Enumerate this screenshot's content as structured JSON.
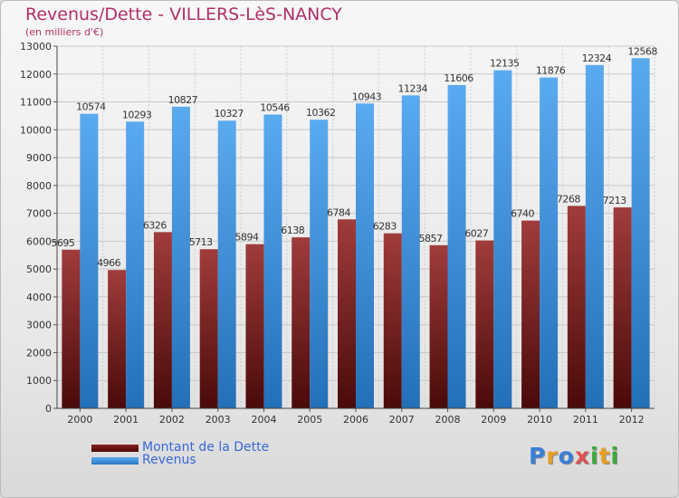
{
  "title": "Revenus/Dette - VILLERS-LèS-NANCY",
  "subtitle": "(en milliers d'€)",
  "logo": "Proxiti",
  "colors": {
    "dette": "#7a1616",
    "revenus": "#3d8fd8",
    "title": "#b0306a",
    "legend_text": "#3a68d8"
  },
  "chart_data": {
    "type": "bar",
    "title": "Revenus/Dette - VILLERS-LèS-NANCY",
    "subtitle": "(en milliers d'€)",
    "xlabel": "",
    "ylabel": "",
    "ylim": [
      0,
      13000
    ],
    "yticks": [
      0,
      1000,
      2000,
      3000,
      4000,
      5000,
      6000,
      7000,
      8000,
      9000,
      10000,
      11000,
      12000,
      13000
    ],
    "grid": true,
    "legend_position": "bottom-left",
    "categories": [
      "2000",
      "2001",
      "2002",
      "2003",
      "2004",
      "2005",
      "2006",
      "2007",
      "2008",
      "2009",
      "2010",
      "2011",
      "2012"
    ],
    "series": [
      {
        "name": "Montant de la Dette",
        "values": [
          5695,
          4966,
          6326,
          5713,
          5894,
          6138,
          6784,
          6283,
          5857,
          6027,
          6740,
          7268,
          7213
        ]
      },
      {
        "name": "Revenus",
        "values": [
          10574,
          10293,
          10827,
          10327,
          10546,
          10362,
          10943,
          11234,
          11606,
          12135,
          11876,
          12324,
          12568
        ]
      }
    ]
  }
}
